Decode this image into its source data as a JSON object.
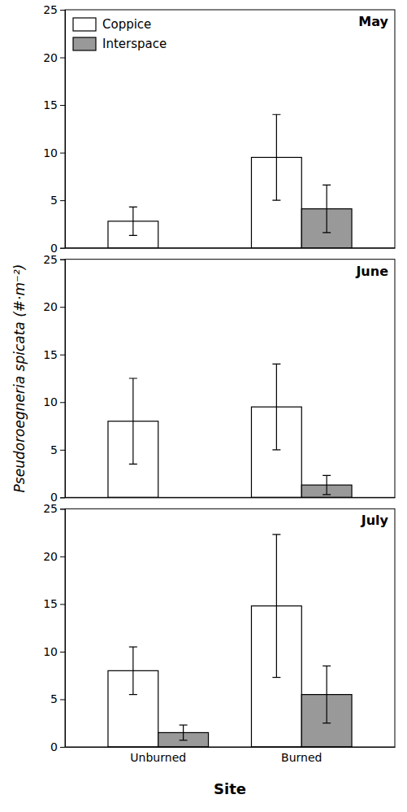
{
  "chart_data": [
    {
      "type": "bar",
      "title": "May",
      "categories": [
        "Unburned",
        "Burned"
      ],
      "series": [
        {
          "name": "Coppice",
          "color": "#ffffff",
          "values": [
            2.8,
            9.5
          ],
          "errors": [
            1.5,
            4.5
          ]
        },
        {
          "name": "Interspace",
          "color": "#999999",
          "values": [
            0.0,
            4.1
          ],
          "errors": [
            null,
            2.5
          ]
        }
      ],
      "ylim": [
        0,
        25
      ],
      "yticks": [
        0,
        5,
        10,
        15,
        20,
        25
      ],
      "legend": "upper left",
      "tick_labels": "y"
    },
    {
      "type": "bar",
      "title": "June",
      "ylabel": "Pseudoroegneria spicata (#·m⁻²)",
      "categories": [
        "Unburned",
        "Burned"
      ],
      "series": [
        {
          "name": "Coppice",
          "color": "#ffffff",
          "values": [
            8.0,
            9.5
          ],
          "errors": [
            4.5,
            4.5
          ]
        },
        {
          "name": "Interspace",
          "color": "#999999",
          "values": [
            0.0,
            1.3
          ],
          "errors": [
            null,
            1.0
          ]
        }
      ],
      "ylim": [
        0,
        25
      ],
      "yticks": [
        0,
        5,
        10,
        15,
        20,
        25
      ],
      "tick_labels": "y"
    },
    {
      "type": "bar",
      "title": "July",
      "xlabel": "Site",
      "categories": [
        "Unburned",
        "Burned"
      ],
      "series": [
        {
          "name": "Coppice",
          "color": "#ffffff",
          "values": [
            8.0,
            14.8
          ],
          "errors": [
            2.5,
            7.5
          ]
        },
        {
          "name": "Interspace",
          "color": "#999999",
          "values": [
            1.5,
            5.5
          ],
          "errors": [
            0.8,
            3.0
          ]
        }
      ],
      "ylim": [
        0,
        25
      ],
      "yticks": [
        0,
        5,
        10,
        15,
        20,
        25
      ]
    }
  ]
}
